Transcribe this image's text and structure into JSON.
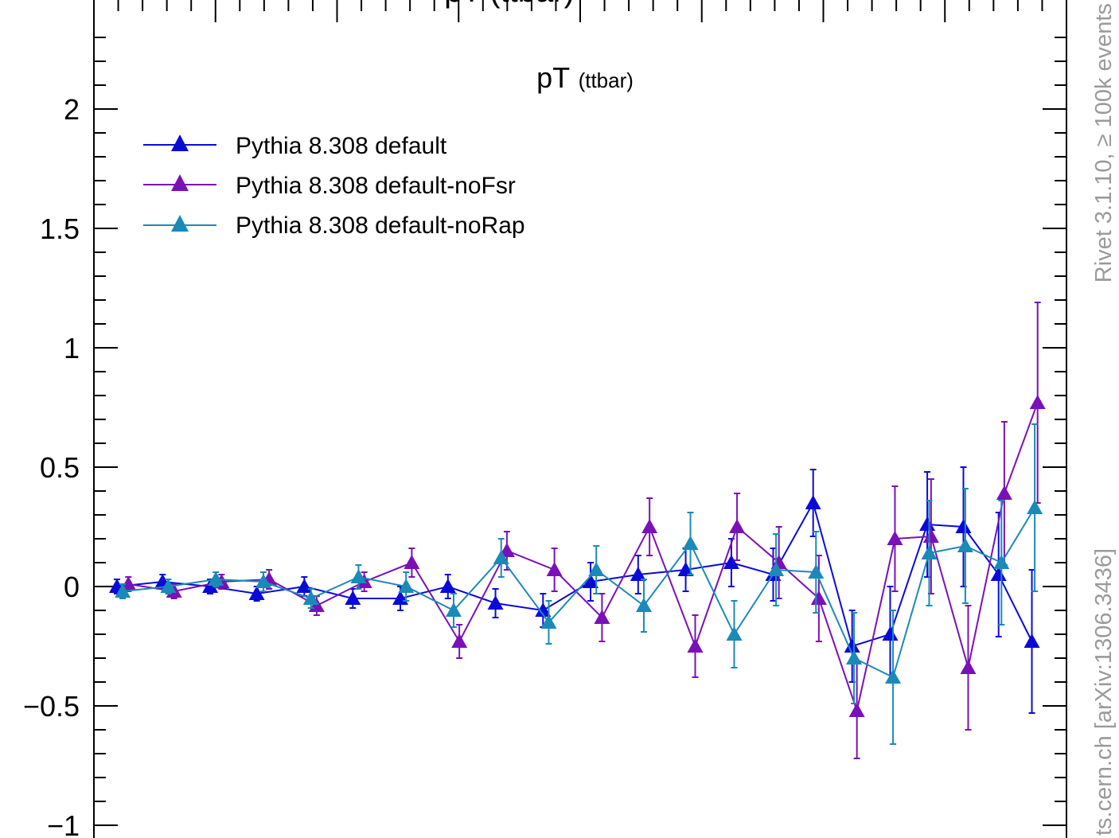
{
  "chart_data": {
    "type": "scatter",
    "title_top": "pT (ttbar)",
    "panel_label": {
      "main": "pT",
      "sub": "(ttbar)"
    },
    "side_text_upper": "Rivet 3.1.10, ≥ 100k events",
    "side_text_lower": "ts.cern.ch [arXiv:1306.3436]",
    "y_ticks": [
      {
        "value": 2,
        "label": "2"
      },
      {
        "value": 1.5,
        "label": "1.5"
      },
      {
        "value": 1,
        "label": "1"
      },
      {
        "value": 0.5,
        "label": "0.5"
      },
      {
        "value": 0,
        "label": "0"
      },
      {
        "value": -0.5,
        "label": "−0.5"
      },
      {
        "value": -1,
        "label": "−1"
      }
    ],
    "ylim": [
      -1.0,
      2.33
    ],
    "xlim": [
      0,
      1
    ],
    "legend_placement": "top-left",
    "series": [
      {
        "name": "Pythia 8.308 default",
        "color": "#0a0ad8",
        "marker": "triangle-up",
        "x": [
          0.01,
          0.058,
          0.108,
          0.157,
          0.207,
          0.258,
          0.308,
          0.358,
          0.408,
          0.458,
          0.508,
          0.558,
          0.608,
          0.656,
          0.7,
          0.742,
          0.783,
          0.823,
          0.862,
          0.9,
          0.937,
          0.972
        ],
        "y": [
          0.0,
          0.02,
          0.0,
          -0.03,
          0.0,
          -0.05,
          -0.05,
          0.0,
          -0.07,
          -0.1,
          0.02,
          0.05,
          0.07,
          0.1,
          0.05,
          0.35,
          -0.25,
          -0.2,
          0.26,
          0.25,
          0.05,
          -0.23
        ],
        "err": [
          0.03,
          0.03,
          0.03,
          0.03,
          0.04,
          0.04,
          0.05,
          0.05,
          0.06,
          0.07,
          0.08,
          0.08,
          0.09,
          0.1,
          0.11,
          0.14,
          0.15,
          0.2,
          0.22,
          0.25,
          0.26,
          0.3
        ]
      },
      {
        "name": "Pythia 8.308 default-noFsr",
        "color": "#7a10b8",
        "marker": "triangle-up",
        "x": [
          0.022,
          0.07,
          0.12,
          0.17,
          0.22,
          0.27,
          0.32,
          0.37,
          0.42,
          0.47,
          0.52,
          0.57,
          0.618,
          0.662,
          0.706,
          0.748,
          0.788,
          0.828,
          0.866,
          0.905,
          0.943,
          0.978
        ],
        "y": [
          0.01,
          -0.02,
          0.02,
          0.03,
          -0.08,
          0.02,
          0.1,
          -0.23,
          0.15,
          0.07,
          -0.13,
          0.25,
          -0.25,
          0.25,
          0.1,
          -0.05,
          -0.52,
          0.2,
          0.21,
          -0.34,
          0.39,
          0.77
        ],
        "err": [
          0.03,
          0.03,
          0.03,
          0.04,
          0.04,
          0.04,
          0.06,
          0.07,
          0.08,
          0.09,
          0.1,
          0.12,
          0.13,
          0.14,
          0.15,
          0.18,
          0.2,
          0.22,
          0.24,
          0.26,
          0.3,
          0.42
        ]
      },
      {
        "name": "Pythia 8.308 default-noRap",
        "color": "#1a8ab8",
        "marker": "triangle-up",
        "x": [
          0.016,
          0.064,
          0.114,
          0.164,
          0.214,
          0.264,
          0.314,
          0.364,
          0.414,
          0.464,
          0.514,
          0.564,
          0.613,
          0.659,
          0.703,
          0.745,
          0.785,
          0.826,
          0.864,
          0.902,
          0.94,
          0.975
        ],
        "y": [
          -0.02,
          0.0,
          0.03,
          0.02,
          -0.05,
          0.04,
          0.0,
          -0.1,
          0.12,
          -0.15,
          0.07,
          -0.08,
          0.18,
          -0.2,
          0.07,
          0.06,
          -0.3,
          -0.38,
          0.14,
          0.17,
          0.1,
          0.33
        ],
        "err": [
          0.03,
          0.03,
          0.03,
          0.04,
          0.04,
          0.05,
          0.06,
          0.07,
          0.08,
          0.09,
          0.1,
          0.11,
          0.13,
          0.14,
          0.15,
          0.17,
          0.19,
          0.28,
          0.22,
          0.24,
          0.26,
          0.35
        ]
      }
    ]
  }
}
